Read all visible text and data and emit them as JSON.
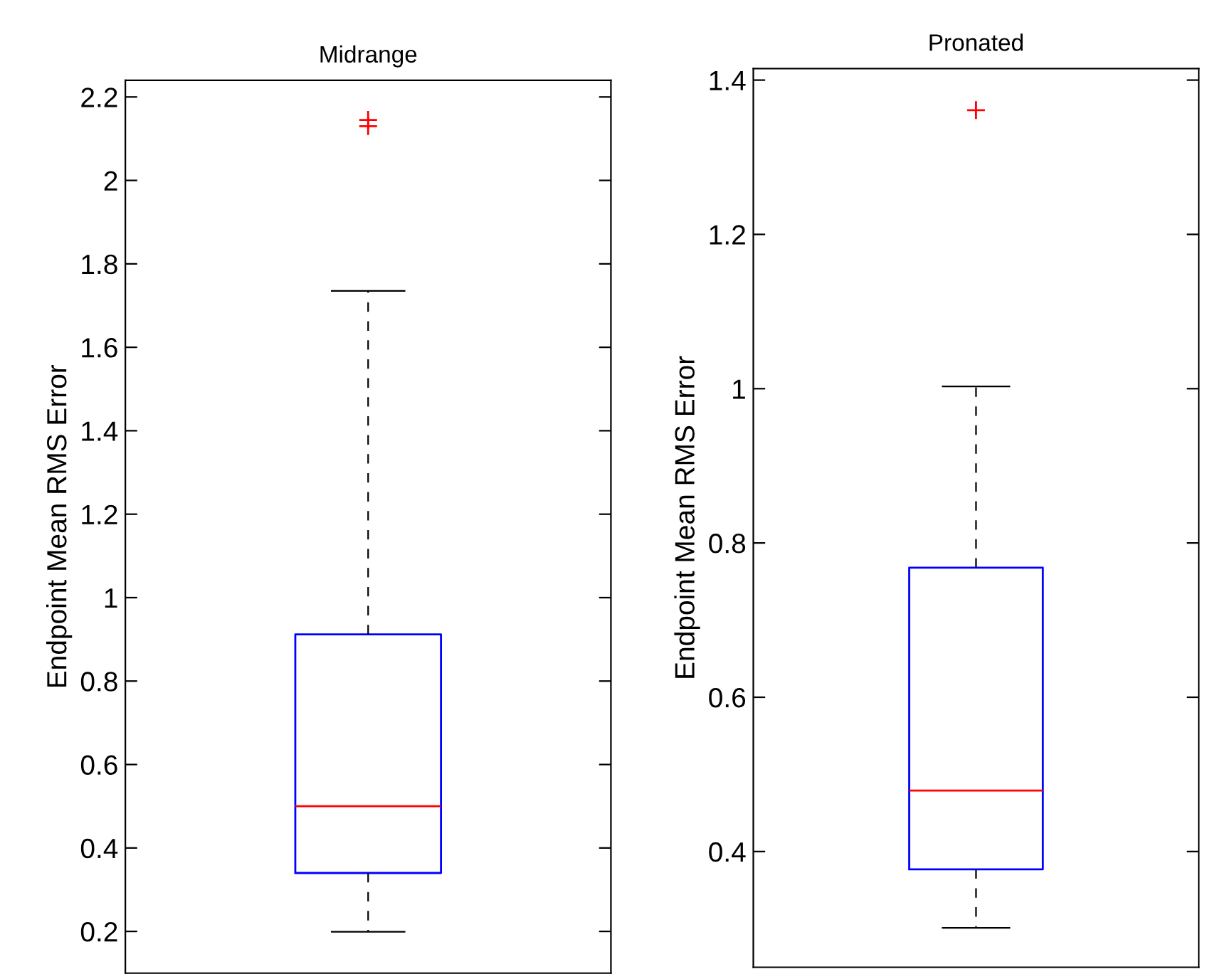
{
  "chart_data": [
    {
      "type": "box",
      "title": "Midrange",
      "ylabel": "Endpoint Mean RMS Error",
      "categories": [
        null
      ],
      "ylim": [
        0.1,
        2.24
      ],
      "yticks": [
        0.2,
        0.4,
        0.6,
        0.8,
        1,
        1.2,
        1.4,
        1.6,
        1.8,
        2,
        2.2
      ],
      "tick_labels": "y",
      "grid": false,
      "series": [
        {
          "color": "#0000ff",
          "boxes": [
            {
              "low": 0.199,
              "q1": 0.34,
              "median": 0.5,
              "q3": 0.912,
              "high": 1.735,
              "outliers": [
                2.13,
                2.145
              ]
            }
          ]
        }
      ]
    },
    {
      "type": "box",
      "title": "Pronated",
      "ylabel": "Endpoint Mean RMS Error",
      "categories": [
        null
      ],
      "ylim": [
        0.25,
        1.415
      ],
      "yticks": [
        0.4,
        0.6,
        0.8,
        1,
        1.2,
        1.4
      ],
      "tick_labels": "y",
      "grid": false,
      "series": [
        {
          "color": "#0000ff",
          "boxes": [
            {
              "low": 0.301,
              "q1": 0.377,
              "median": 0.479,
              "q3": 0.768,
              "high": 1.003,
              "outliers": [
                1.361
              ]
            }
          ]
        }
      ]
    }
  ]
}
